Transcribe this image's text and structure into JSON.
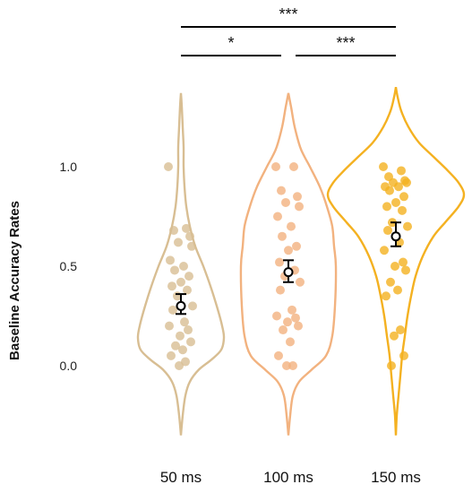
{
  "chart_data": {
    "type": "violin",
    "title": "",
    "xlabel": "",
    "ylabel": "Baseline Accuracy Rates",
    "ylim": [
      -0.35,
      1.4
    ],
    "yticks": [
      {
        "value": 0.0,
        "label": "0.0"
      },
      {
        "value": 0.5,
        "label": "0.5"
      },
      {
        "value": 1.0,
        "label": "1.0"
      }
    ],
    "grid": false,
    "categories": [
      "50 ms",
      "100 ms",
      "150 ms"
    ],
    "groups": [
      {
        "category": "50 ms",
        "color": "#D8BE93",
        "profile": [
          [
            -0.35,
            0
          ],
          [
            -0.25,
            2
          ],
          [
            -0.15,
            5
          ],
          [
            -0.08,
            10
          ],
          [
            -0.02,
            20
          ],
          [
            0.03,
            34
          ],
          [
            0.08,
            45
          ],
          [
            0.14,
            48
          ],
          [
            0.2,
            46
          ],
          [
            0.3,
            40
          ],
          [
            0.4,
            33
          ],
          [
            0.5,
            25
          ],
          [
            0.6,
            16
          ],
          [
            0.7,
            10
          ],
          [
            0.8,
            6
          ],
          [
            0.9,
            4
          ],
          [
            1.0,
            3
          ],
          [
            1.1,
            3
          ],
          [
            1.2,
            2
          ],
          [
            1.3,
            1
          ],
          [
            1.37,
            0
          ]
        ],
        "mean": 0.3,
        "ci": [
          0.26,
          0.36
        ],
        "points": [
          1.0,
          0.69,
          0.68,
          0.65,
          0.62,
          0.6,
          0.53,
          0.5,
          0.48,
          0.45,
          0.42,
          0.4,
          0.38,
          0.35,
          0.3,
          0.28,
          0.22,
          0.2,
          0.18,
          0.15,
          0.12,
          0.1,
          0.08,
          0.05,
          0.02,
          0.0
        ]
      },
      {
        "category": "100 ms",
        "color": "#F2B27F",
        "profile": [
          [
            -0.35,
            0
          ],
          [
            -0.25,
            2
          ],
          [
            -0.15,
            5
          ],
          [
            -0.08,
            12
          ],
          [
            -0.02,
            26
          ],
          [
            0.05,
            42
          ],
          [
            0.15,
            49
          ],
          [
            0.3,
            52
          ],
          [
            0.5,
            53
          ],
          [
            0.6,
            51
          ],
          [
            0.7,
            49
          ],
          [
            0.8,
            43
          ],
          [
            0.9,
            35
          ],
          [
            1.0,
            24
          ],
          [
            1.05,
            18
          ],
          [
            1.1,
            13
          ],
          [
            1.2,
            7
          ],
          [
            1.3,
            3
          ],
          [
            1.37,
            0
          ]
        ],
        "mean": 0.47,
        "ci": [
          0.42,
          0.53
        ],
        "points": [
          1.0,
          1.0,
          0.88,
          0.85,
          0.82,
          0.8,
          0.75,
          0.7,
          0.65,
          0.6,
          0.58,
          0.52,
          0.48,
          0.45,
          0.42,
          0.38,
          0.28,
          0.25,
          0.24,
          0.22,
          0.2,
          0.18,
          0.12,
          0.05,
          0.0,
          0.0
        ]
      },
      {
        "category": "150 ms",
        "color": "#F4B121",
        "profile": [
          [
            -0.35,
            0
          ],
          [
            -0.25,
            1
          ],
          [
            -0.15,
            3
          ],
          [
            -0.05,
            5
          ],
          [
            0.05,
            7
          ],
          [
            0.15,
            10
          ],
          [
            0.25,
            13
          ],
          [
            0.35,
            17
          ],
          [
            0.45,
            22
          ],
          [
            0.55,
            30
          ],
          [
            0.65,
            42
          ],
          [
            0.72,
            55
          ],
          [
            0.8,
            70
          ],
          [
            0.86,
            76
          ],
          [
            0.92,
            70
          ],
          [
            0.98,
            58
          ],
          [
            1.05,
            42
          ],
          [
            1.12,
            26
          ],
          [
            1.2,
            14
          ],
          [
            1.28,
            6
          ],
          [
            1.35,
            2
          ],
          [
            1.4,
            0
          ]
        ],
        "mean": 0.65,
        "ci": [
          0.6,
          0.72
        ],
        "points": [
          1.0,
          0.98,
          0.95,
          0.93,
          0.92,
          0.92,
          0.9,
          0.9,
          0.88,
          0.85,
          0.82,
          0.8,
          0.78,
          0.72,
          0.7,
          0.68,
          0.62,
          0.58,
          0.52,
          0.5,
          0.48,
          0.42,
          0.38,
          0.35,
          0.18,
          0.15,
          0.05,
          0.0
        ]
      }
    ],
    "significance": [
      {
        "from": "50 ms",
        "to": "150 ms",
        "label": "***",
        "level": 2
      },
      {
        "from": "50 ms",
        "to": "100 ms",
        "label": "*",
        "level": 1
      },
      {
        "from": "100 ms",
        "to": "150 ms",
        "label": "***",
        "level": 1
      }
    ]
  }
}
